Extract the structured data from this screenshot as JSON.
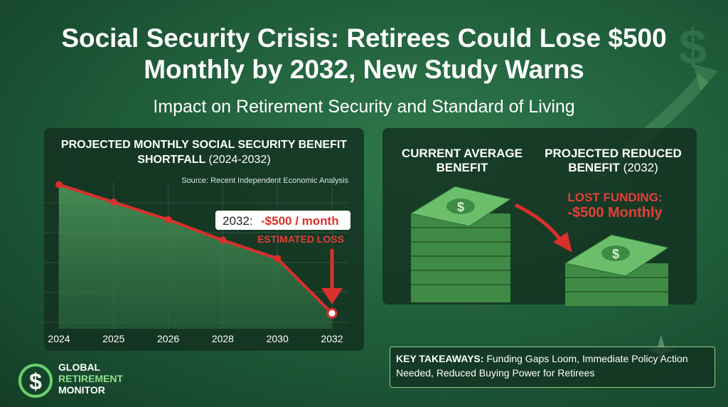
{
  "header": {
    "title": "Social Security Crisis: Retirees Could Lose $500 Monthly by 2032, New Study Warns",
    "subtitle": "Impact on Retirement Security and Standard of Living"
  },
  "chart_data": {
    "type": "line",
    "title": "PROJECTED MONTHLY SOCIAL SECURITY BENEFIT SHORTFALL",
    "title_period": "(2024-2032)",
    "source": "Source: Recent Independent Economic Analysis",
    "categories": [
      "2024",
      "2025",
      "2026",
      "2028",
      "2030",
      "2032"
    ],
    "values": [
      0,
      -68,
      -136,
      -216,
      -287,
      -500
    ],
    "color": "#d9302c",
    "ylim": [
      -560,
      40
    ],
    "annotation": {
      "prefix": "2032:",
      "value_text": "-$500 / month",
      "caption": "ESTIMATED LOSS"
    }
  },
  "comparison": {
    "current_label": "CURRENT AVERAGE BENEFIT",
    "projected_label": "PROJECTED REDUCED BENEFIT",
    "projected_year": "(2032)",
    "lost_label": "LOST FUNDING:",
    "lost_value": "-$500 Monthly"
  },
  "takeaways": {
    "label": "KEY TAKEAWAYS:",
    "text": "Funding Gaps Loom, Immediate Policy Action Needed, Reduced Buying Power for Retirees"
  },
  "logo": {
    "line1": "GLOBAL",
    "line2": "RETIREMENT",
    "line3": "MONITOR"
  }
}
